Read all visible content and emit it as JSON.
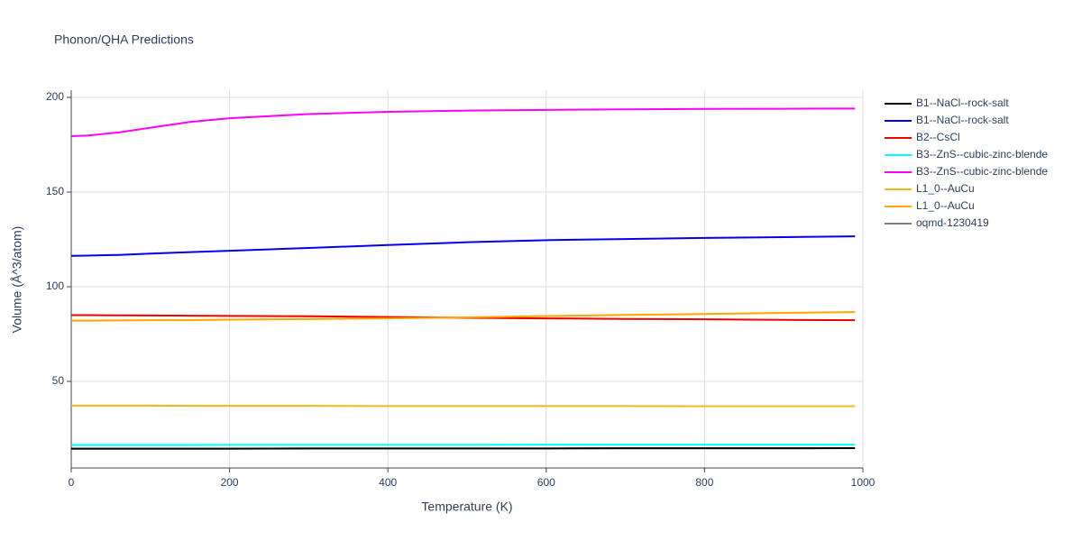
{
  "chart_data": {
    "type": "line",
    "title": "Phonon/QHA Predictions",
    "x_label": "Temperature (K)",
    "y_label": "Volume (Å^3/atom)",
    "x": [
      0,
      20,
      60,
      100,
      150,
      200,
      300,
      400,
      500,
      600,
      700,
      800,
      900,
      990
    ],
    "series": [
      {
        "name": "oqmd-1230419",
        "color": "#808080",
        "values": [
          14.5,
          14.5,
          14.5,
          14.5,
          14.5,
          14.5,
          14.6,
          14.6,
          14.6,
          14.6,
          14.7,
          14.7,
          14.7,
          14.8
        ]
      },
      {
        "name": "B1--NaCl--rock-salt",
        "color": "#000000",
        "values": [
          14.5,
          14.5,
          14.5,
          14.5,
          14.5,
          14.5,
          14.6,
          14.6,
          14.6,
          14.6,
          14.7,
          14.7,
          14.7,
          14.8
        ]
      },
      {
        "name": "B1--NaCl--rock-salt",
        "color": "#0000ee",
        "values": [
          116.3,
          116.4,
          116.8,
          117.5,
          118.3,
          119,
          120.5,
          122,
          123.5,
          124.6,
          125.2,
          125.8,
          126.2,
          126.6
        ]
      },
      {
        "name": "B2--CsCl",
        "color": "#ee0000",
        "values": [
          85,
          85,
          84.9,
          84.8,
          84.7,
          84.6,
          84.4,
          84,
          83.6,
          83.3,
          83,
          82.8,
          82.5,
          82.3
        ]
      },
      {
        "name": "B3--ZnS--cubic-zinc-blende",
        "color": "#00ffff",
        "values": [
          16.4,
          16.4,
          16.4,
          16.4,
          16.4,
          16.5,
          16.5,
          16.5,
          16.5,
          16.6,
          16.6,
          16.6,
          16.6,
          16.6
        ]
      },
      {
        "name": "B3--ZnS--cubic-zinc-blende",
        "color": "#ff00ff",
        "values": [
          179.5,
          179.8,
          181.5,
          184,
          187,
          189,
          191.2,
          192.4,
          193,
          193.4,
          193.7,
          193.9,
          194,
          194.1
        ]
      },
      {
        "name": "L1_0--AuCu",
        "color": "#f2b81c",
        "values": [
          37.2,
          37.2,
          37.2,
          37.2,
          37.1,
          37.1,
          37.1,
          37,
          37,
          37,
          37,
          36.9,
          36.9,
          36.9
        ]
      },
      {
        "name": "L1_0--AuCu",
        "color": "#ffa500",
        "values": [
          82.1,
          82.1,
          82.2,
          82.3,
          82.4,
          82.6,
          82.9,
          83.3,
          83.8,
          84.5,
          85.1,
          85.6,
          86.2,
          86.6
        ]
      }
    ],
    "legend_order": [
      1,
      2,
      3,
      4,
      5,
      6,
      7,
      0
    ],
    "xlim": [
      0,
      1000
    ],
    "xticks": [
      0,
      200,
      400,
      600,
      800,
      1000
    ],
    "ylim": [
      4.3,
      203.8
    ],
    "yticks": [
      50,
      100,
      150,
      200
    ],
    "grid": true
  }
}
